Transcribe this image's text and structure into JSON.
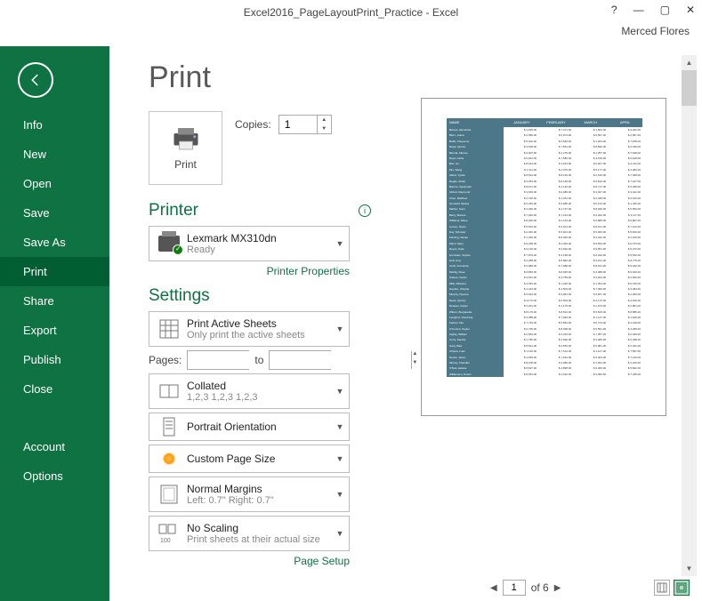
{
  "window": {
    "title": "Excel2016_PageLayoutPrint_Practice - Excel",
    "user": "Merced Flores"
  },
  "sidebar": {
    "items": [
      {
        "label": "Info"
      },
      {
        "label": "New"
      },
      {
        "label": "Open"
      },
      {
        "label": "Save"
      },
      {
        "label": "Save As"
      },
      {
        "label": "Print",
        "selected": true
      },
      {
        "label": "Share"
      },
      {
        "label": "Export"
      },
      {
        "label": "Publish"
      },
      {
        "label": "Close"
      }
    ],
    "bottom": [
      {
        "label": "Account"
      },
      {
        "label": "Options"
      }
    ]
  },
  "page": {
    "title": "Print",
    "print_button": "Print",
    "copies_label": "Copies:",
    "copies_value": "1",
    "printer_header": "Printer",
    "printer_name": "Lexmark MX310dn",
    "printer_status": "Ready",
    "printer_props": "Printer Properties",
    "settings_header": "Settings",
    "pages_label": "Pages:",
    "pages_to": "to",
    "page_setup": "Page Setup",
    "dropdowns": {
      "print_what": {
        "top": "Print Active Sheets",
        "bot": "Only print the active sheets"
      },
      "collation": {
        "top": "Collated",
        "bot": "1,2,3    1,2,3    1,2,3"
      },
      "orientation": {
        "top": "Portrait Orientation"
      },
      "page_size": {
        "top": "Custom Page Size"
      },
      "margins": {
        "top": "Normal Margins",
        "bot": "Left:   0.7\"    Right:   0.7\""
      },
      "scaling": {
        "top": "No Scaling",
        "bot": "Print sheets at their actual size"
      }
    }
  },
  "preview": {
    "current_page": "1",
    "total_pages": "of 6",
    "headers": [
      "NAME",
      "JANUARY",
      "FEBRUARY",
      "MARCH",
      "APRIL"
    ],
    "row_names": [
      "Barnes, Alexander",
      "Blum, Joana",
      "Boffa, Cheyenne",
      "Boyle, Quincy",
      "Blonda, Alfonse",
      "Boyd, Carlie",
      "Bax, Ho",
      "Min, Wang",
      "Alford, Tynita",
      "Regan, Abdul",
      "Barone, Savannah",
      "Abbott, Raymond",
      "Chen, Matthew",
      "Grunfeld, Mysha",
      "Mathur, Sumi",
      "Barry, Marcus",
      "Williams, Diane",
      "Lucero, Rosie",
      "Day, Schuyler",
      "Fleming, Sanae",
      "Mann, Mary",
      "Reyes, Kylie",
      "Gonzalez, Sophie",
      "Huff, Amy",
      "Cook, Fernanda",
      "Mohlig, Rose",
      "Gaines, Xavier",
      "Mills, Rihanna",
      "Hayden, Olayide",
      "Murphy, Ryanne",
      "Davis, Quincy",
      "Dewees, Kaylei",
      "Wilcox, Burganetta",
      "Langford, Channing",
      "Farhan, Ola",
      "O'Connor, Keytei",
      "Ogbay, William",
      "Curry, Sandra",
      "Garg, Basi",
      "Chopra, Liam",
      "Nunes, Jaxon",
      "Murray, Chandler",
      "O'Neil, Helana",
      "Williamson, Dustin"
    ]
  },
  "colors": {
    "green": "#0e7242",
    "teal": "#4b7788"
  }
}
